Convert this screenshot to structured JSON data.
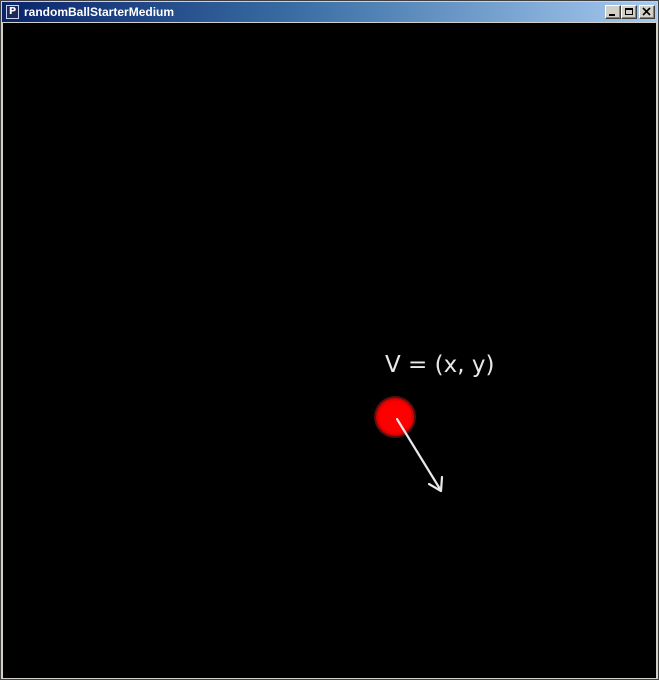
{
  "window": {
    "title": "randomBallStarterMedium",
    "icon_glyph": "P",
    "icon_name": "processing-app-icon",
    "controls": [
      "minimize",
      "maximize",
      "close"
    ]
  },
  "sketch": {
    "background_color": "#000000",
    "ball": {
      "color": "#ff0000",
      "glow_color": "#ff2a2a"
    },
    "arrow": {
      "color": "#e8e8e8"
    },
    "velocity_label": "V = (x, y)"
  }
}
